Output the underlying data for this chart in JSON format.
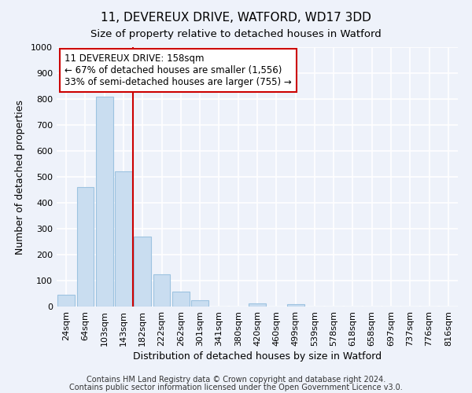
{
  "title": "11, DEVEREUX DRIVE, WATFORD, WD17 3DD",
  "subtitle": "Size of property relative to detached houses in Watford",
  "xlabel": "Distribution of detached houses by size in Watford",
  "ylabel": "Number of detached properties",
  "categories": [
    "24sqm",
    "64sqm",
    "103sqm",
    "143sqm",
    "182sqm",
    "222sqm",
    "262sqm",
    "301sqm",
    "341sqm",
    "380sqm",
    "420sqm",
    "460sqm",
    "499sqm",
    "539sqm",
    "578sqm",
    "618sqm",
    "658sqm",
    "697sqm",
    "737sqm",
    "776sqm",
    "816sqm"
  ],
  "bar_heights": [
    46,
    460,
    810,
    520,
    270,
    125,
    57,
    24,
    0,
    0,
    12,
    0,
    8,
    0,
    0,
    0,
    0,
    0,
    0,
    0,
    0
  ],
  "bar_color": "#c9ddf0",
  "bar_edgecolor": "#9dc3e0",
  "vline_x": 3.5,
  "vline_color": "#cc0000",
  "annotation_line1": "11 DEVEREUX DRIVE: 158sqm",
  "annotation_line2": "← 67% of detached houses are smaller (1,556)",
  "annotation_line3": "33% of semi-detached houses are larger (755) →",
  "annotation_box_facecolor": "#ffffff",
  "annotation_box_edgecolor": "#cc0000",
  "ylim": [
    0,
    1000
  ],
  "yticks": [
    0,
    100,
    200,
    300,
    400,
    500,
    600,
    700,
    800,
    900,
    1000
  ],
  "footer_line1": "Contains HM Land Registry data © Crown copyright and database right 2024.",
  "footer_line2": "Contains public sector information licensed under the Open Government Licence v3.0.",
  "bg_color": "#eef2fa",
  "grid_color": "#ffffff",
  "title_fontsize": 11,
  "subtitle_fontsize": 9.5,
  "axis_label_fontsize": 9,
  "tick_fontsize": 8,
  "annotation_fontsize": 8.5,
  "footer_fontsize": 7
}
